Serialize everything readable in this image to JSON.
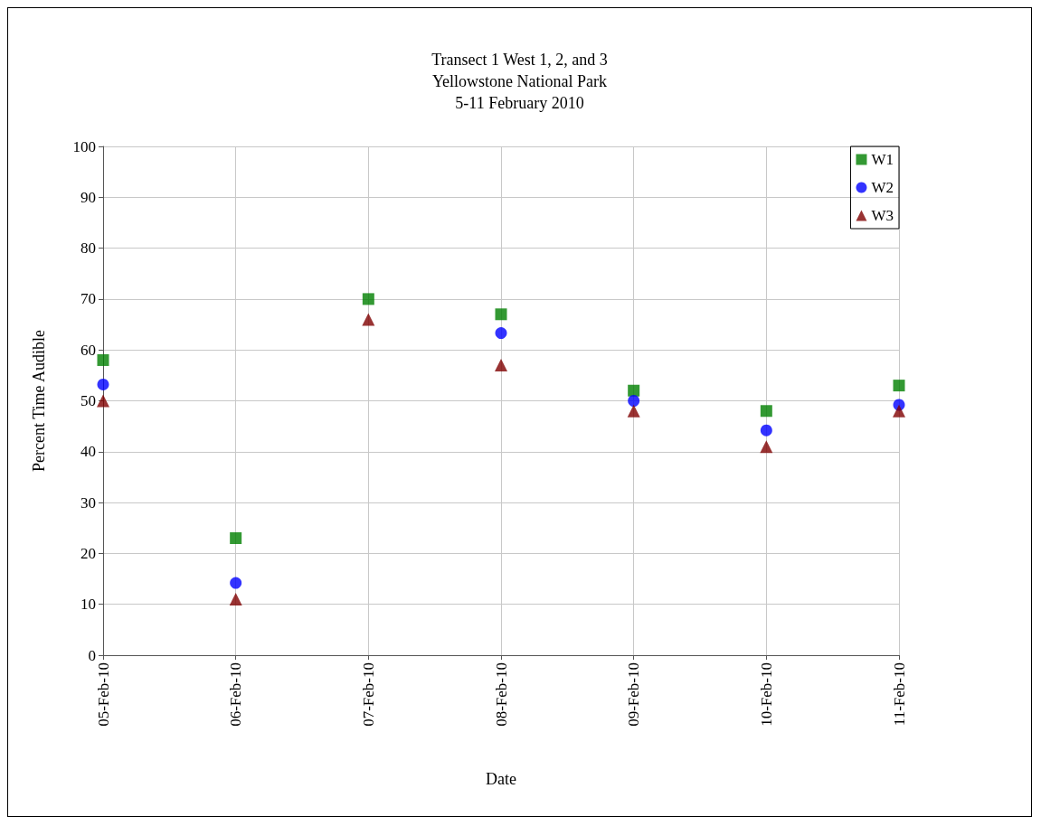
{
  "chart_data": {
    "type": "scatter",
    "title": "Transect 1 West 1, 2, and 3\nYellowstone National Park\n5-11 February 2010",
    "xlabel": "Date",
    "ylabel": "Percent Time Audible",
    "categories": [
      "05-Feb-10",
      "06-Feb-10",
      "07-Feb-10",
      "08-Feb-10",
      "09-Feb-10",
      "10-Feb-10",
      "11-Feb-10"
    ],
    "series": [
      {
        "name": "W1",
        "color": "#008000",
        "marker": "square",
        "values": [
          58,
          23,
          70,
          67,
          52,
          48,
          53
        ]
      },
      {
        "name": "W2",
        "color": "#0000ff",
        "marker": "circle",
        "values": [
          53.2,
          14.2,
          null,
          63.3,
          50,
          44.2,
          49.2
        ]
      },
      {
        "name": "W3",
        "color": "#800000",
        "marker": "triangle",
        "values": [
          50,
          11,
          66,
          57,
          48,
          41,
          48
        ]
      }
    ],
    "ylim": [
      0,
      100
    ],
    "yticks": [
      0,
      10,
      20,
      30,
      40,
      50,
      60,
      70,
      80,
      90,
      100
    ],
    "grid": true,
    "legend": "top right"
  }
}
